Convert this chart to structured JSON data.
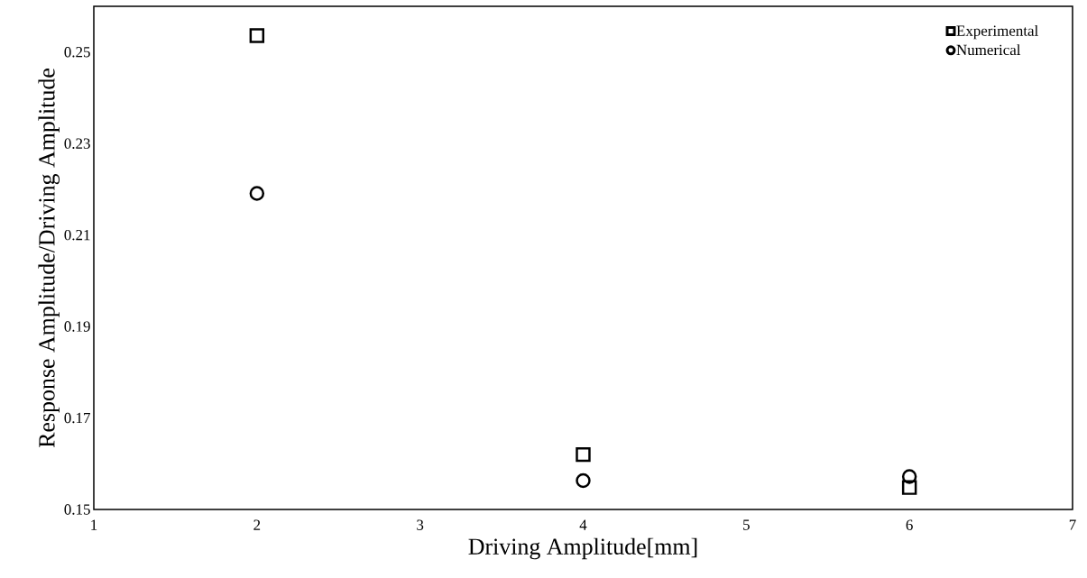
{
  "chart_data": {
    "type": "scatter",
    "xlabel": "Driving Amplitude[mm]",
    "ylabel": "Response Amplitude/Driving Amplitude",
    "xlim": [
      1,
      7
    ],
    "xticks": [
      1,
      2,
      3,
      4,
      5,
      6,
      7
    ],
    "ylim": [
      0.15,
      0.26
    ],
    "yticks": [
      0.15,
      0.17,
      0.19,
      0.21,
      0.23,
      0.25
    ],
    "grid": false,
    "legend": "top right",
    "series": [
      {
        "name": "Experimental",
        "color": "#000000",
        "marker": "square",
        "x": [
          2,
          4,
          6
        ],
        "values": [
          0.2536,
          0.162,
          0.1548
        ]
      },
      {
        "name": "Numerical",
        "color": "#000000",
        "marker": "circle",
        "x": [
          2,
          4,
          6
        ],
        "values": [
          0.2191,
          0.1563,
          0.1572
        ]
      }
    ]
  }
}
